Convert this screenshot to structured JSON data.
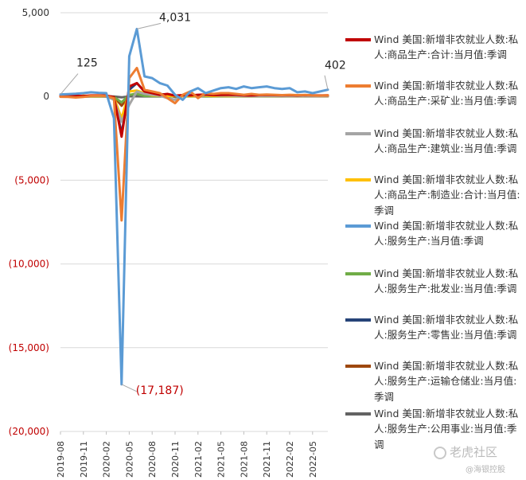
{
  "chart_data": {
    "type": "line",
    "x": [
      "2019-08",
      "2019-09",
      "2019-10",
      "2019-11",
      "2019-12",
      "2020-01",
      "2020-02",
      "2020-03",
      "2020-04",
      "2020-05",
      "2020-06",
      "2020-07",
      "2020-08",
      "2020-09",
      "2020-10",
      "2020-11",
      "2020-12",
      "2021-01",
      "2021-02",
      "2021-03",
      "2021-04",
      "2021-05",
      "2021-06",
      "2021-07",
      "2021-08",
      "2021-09",
      "2021-10",
      "2021-11",
      "2021-12",
      "2022-01",
      "2022-02",
      "2022-03",
      "2022-04",
      "2022-05",
      "2022-06",
      "2022-07"
    ],
    "x_tick_labels": [
      "2019-08",
      "2019-11",
      "2020-02",
      "2020-05",
      "2020-08",
      "2020-11",
      "2021-02",
      "2021-05",
      "2021-08",
      "2021-11",
      "2022-02",
      "2022-05"
    ],
    "ylim": [
      -20000,
      5000
    ],
    "y_ticks": [
      5000,
      0,
      -5000,
      -10000,
      -15000,
      -20000
    ],
    "y_tick_labels": [
      "5,000",
      "0",
      "(5,000)",
      "(10,000)",
      "(15,000)",
      "(20,000)"
    ],
    "grid": "horizontal",
    "legend_position": "right",
    "series": [
      {
        "name": "Wind 美国:新增非农就业人数:私人:商品生产:合计:当月值:季调",
        "color": "#c00000",
        "values": [
          20,
          25,
          40,
          30,
          60,
          70,
          50,
          -40,
          -2400,
          600,
          800,
          300,
          200,
          100,
          150,
          50,
          80,
          60,
          100,
          120,
          80,
          90,
          100,
          100,
          60,
          60,
          80,
          90,
          80,
          70,
          80,
          60,
          80,
          70,
          60,
          70
        ]
      },
      {
        "name": "Wind 美国:新增非农就业人数:私人:商品生产:采矿业:当月值:季调",
        "color": "#ed7d31",
        "values": [
          -20,
          -30,
          -60,
          -30,
          40,
          50,
          20,
          -100,
          -7400,
          1100,
          1700,
          400,
          300,
          200,
          -100,
          -400,
          100,
          300,
          -100,
          200,
          150,
          200,
          200,
          150,
          100,
          150,
          100,
          120,
          100,
          80,
          100,
          80,
          90,
          60,
          50,
          70
        ]
      },
      {
        "name": "Wind 美国:新增非农就业人数:私人:商品生产:建筑业:当月值:季调",
        "color": "#a5a5a5",
        "values": [
          -10,
          -5,
          -20,
          10,
          30,
          40,
          10,
          -200,
          -1500,
          -500,
          300,
          150,
          100,
          50,
          -100,
          -200,
          50,
          200,
          -50,
          100,
          80,
          50,
          60,
          40,
          30,
          30,
          20,
          30,
          30,
          20,
          25,
          20,
          20,
          15,
          15,
          20
        ]
      },
      {
        "name": "Wind 美国:新增非农就业人数:私人:商品生产:制造业:合计:当月值:季调",
        "color": "#ffc000",
        "values": [
          10,
          15,
          -30,
          50,
          10,
          20,
          15,
          -50,
          -1300,
          300,
          350,
          200,
          60,
          40,
          30,
          20,
          10,
          30,
          20,
          50,
          30,
          30,
          20,
          25,
          20,
          20,
          25,
          20,
          20,
          20,
          15,
          15,
          20,
          15,
          15,
          10
        ]
      },
      {
        "name": "Wind 美国:新增非农就业人数:私人:服务生产:当月值:季调",
        "color": "#5b9bd5",
        "values": [
          125,
          140,
          160,
          200,
          250,
          220,
          200,
          -1300,
          -17187,
          2400,
          4031,
          1200,
          1100,
          800,
          650,
          100,
          -200,
          300,
          500,
          200,
          350,
          500,
          550,
          450,
          600,
          500,
          550,
          600,
          500,
          450,
          500,
          250,
          300,
          200,
          300,
          402
        ]
      },
      {
        "name": "Wind 美国:新增非农就业人数:私人:服务生产:批发业:当月值:季调",
        "color": "#70ad47",
        "values": [
          5,
          5,
          5,
          5,
          5,
          5,
          5,
          -30,
          -350,
          100,
          150,
          30,
          20,
          20,
          20,
          10,
          10,
          10,
          10,
          15,
          10,
          10,
          10,
          10,
          10,
          10,
          10,
          10,
          10,
          10,
          10,
          10,
          10,
          10,
          10,
          10
        ]
      },
      {
        "name": "Wind 美国:新增非农就业人数:私人:服务生产:零售业:当月值:季调",
        "color": "#264478",
        "values": [
          5,
          5,
          0,
          5,
          10,
          10,
          5,
          -50,
          -2200,
          400,
          800,
          300,
          200,
          150,
          80,
          -30,
          20,
          30,
          20,
          60,
          30,
          20,
          40,
          30,
          20,
          20,
          30,
          40,
          20,
          30,
          20,
          20,
          30,
          10,
          10,
          20
        ]
      },
      {
        "name": "Wind 美国:新增非农就业人数:私人:服务生产:运输仓储业:当月值:季调",
        "color": "#9e480e",
        "values": [
          10,
          5,
          15,
          10,
          10,
          15,
          10,
          -20,
          -550,
          60,
          200,
          60,
          70,
          60,
          80,
          60,
          40,
          40,
          40,
          40,
          40,
          40,
          40,
          50,
          40,
          40,
          50,
          40,
          40,
          40,
          40,
          40,
          40,
          30,
          30,
          40
        ]
      },
      {
        "name": "Wind 美国:新增非农就业人数:私人:服务生产:公用事业:当月值:季调",
        "color": "#636363",
        "values": [
          2,
          2,
          2,
          2,
          2,
          2,
          2,
          -5,
          -50,
          10,
          10,
          5,
          5,
          5,
          5,
          5,
          5,
          5,
          5,
          5,
          5,
          5,
          5,
          5,
          5,
          5,
          5,
          5,
          5,
          5,
          5,
          5,
          5,
          5,
          5,
          5
        ]
      }
    ],
    "annotations": [
      {
        "label": "125",
        "x": "2019-08",
        "y": 125
      },
      {
        "label": "4,031",
        "x": "2020-06",
        "y": 4031
      },
      {
        "label": "(17,187)",
        "x": "2020-04",
        "y": -17187
      },
      {
        "label": "402",
        "x": "2022-07",
        "y": 402
      }
    ]
  },
  "legend": {
    "items": [
      "Wind 美国:新增非农就业人数:私人:商品生产:合计:当月值:季调",
      "Wind 美国:新增非农就业人数:私人:商品生产:采矿业:当月值:季调",
      "Wind 美国:新增非农就业人数:私人:商品生产:建筑业:当月值:季调",
      "Wind 美国:新增非农就业人数:私人:商品生产:制造业:合计:当月值:季调",
      "Wind 美国:新增非农就业人数:私人:服务生产:当月值:季调",
      "Wind 美国:新增非农就业人数:私人:服务生产:批发业:当月值:季调",
      "Wind 美国:新增非农就业人数:私人:服务生产:零售业:当月值:季调",
      "Wind 美国:新增非农就业人数:私人:服务生产:运输仓储业:当月值:季调",
      "Wind 美国:新增非农就业人数:私人:服务生产:公用事业:当月值:季调"
    ]
  },
  "colors": {
    "negative_tick": "#c00000",
    "positive_tick": "#333333",
    "grid": "#d9d9d9"
  },
  "watermark": {
    "main": "老虎社区",
    "sub": "@海银控股",
    "icon": "tiger-logo-icon"
  }
}
